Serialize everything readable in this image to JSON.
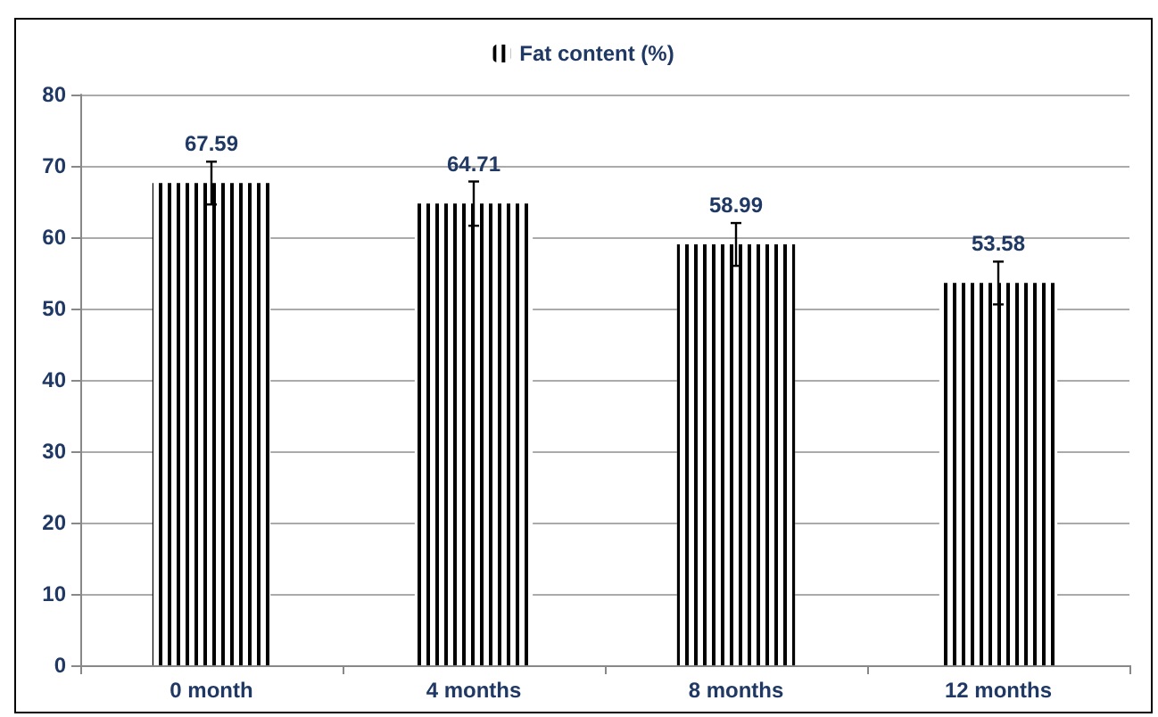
{
  "chart_data": {
    "type": "bar",
    "categories": [
      "0 month",
      "4 months",
      "8 months",
      "12 months"
    ],
    "series": [
      {
        "name": "Fat content (%)",
        "color": "#000000",
        "values": [
          67.59,
          64.71,
          58.99,
          53.58
        ],
        "errors": [
          3,
          3.1,
          3,
          3
        ]
      }
    ],
    "ylim": [
      0,
      80
    ],
    "yticks": [
      0,
      10,
      20,
      30,
      40,
      50,
      60,
      70,
      80
    ],
    "grid": "y",
    "legend": "top",
    "data_labels": true
  }
}
